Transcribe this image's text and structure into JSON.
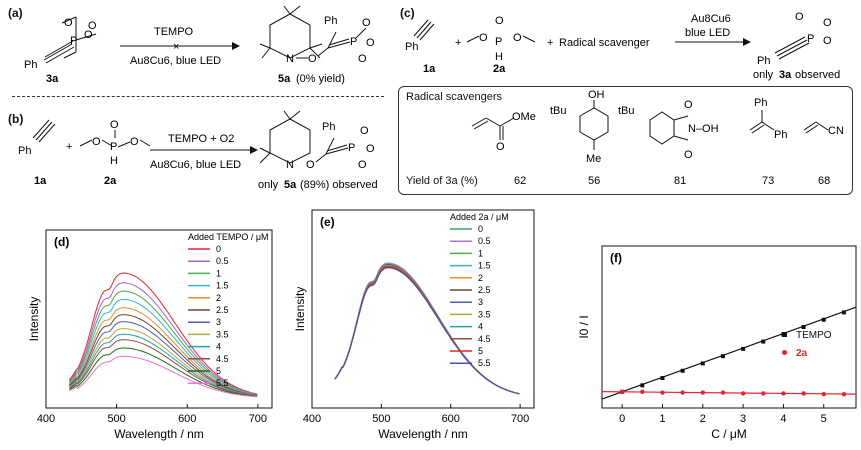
{
  "panel_a": {
    "label": "(a)",
    "reactant": "3a",
    "ph": "Ph",
    "reagent_top": "TEMPO",
    "reagent_bottom": "Au8Cu6, blue LED",
    "product": "5a",
    "product_note": "(0% yield)",
    "cross": "×"
  },
  "panel_b": {
    "label": "(b)",
    "reactant1": "1a",
    "reactant2": "2a",
    "ph": "Ph",
    "plus": "+",
    "reagent_top": "TEMPO + O2",
    "reagent_bottom": "Au8Cu6, blue LED",
    "result_prefix": "only",
    "product": "5a",
    "result_suffix": "(89%) observed"
  },
  "panel_c": {
    "label": "(c)",
    "reactant1": "1a",
    "reactant2": "2a",
    "ph": "Ph",
    "plus": "+",
    "plus2": "+",
    "scavenger_text": "Radical scavenger",
    "reagent_top": "Au8Cu6",
    "reagent_bottom": "blue LED",
    "result_prefix": "only",
    "product": "3a",
    "result_suffix": "observed",
    "box_title": "Radical scavengers",
    "yield_label": "Yield of 3a (%)",
    "scavengers": [
      {
        "struct": "methyl acrylate",
        "group": "OMe",
        "yield": "62"
      },
      {
        "struct": "BHT",
        "groups": [
          "OH",
          "tBu",
          "tBu",
          "Me"
        ],
        "yield": "56"
      },
      {
        "struct": "NHPI",
        "group": "N–OH",
        "yield": "81"
      },
      {
        "struct": "1,1-diphenylethylene",
        "groups": [
          "Ph",
          "Ph"
        ],
        "yield": "73"
      },
      {
        "struct": "acrylonitrile",
        "group": "CN",
        "yield": "68"
      }
    ]
  },
  "chart_data": [
    {
      "panel": "(d)",
      "type": "line",
      "xlabel": "Wavelength / nm",
      "ylabel": "Intensity",
      "xlim": [
        400,
        720
      ],
      "xticks": [
        "400",
        "500",
        "600",
        "700"
      ],
      "legend_title": "Added TEMPO / μM",
      "peak_wavelength": 510,
      "series": [
        {
          "name": "0",
          "peak": 0.9,
          "color": "#e8242a"
        },
        {
          "name": "0.5",
          "peak": 0.83,
          "color": "#a860d8"
        },
        {
          "name": "1",
          "peak": 0.77,
          "color": "#4cab46"
        },
        {
          "name": "1.5",
          "peak": 0.71,
          "color": "#2fb7d6"
        },
        {
          "name": "2",
          "peak": 0.65,
          "color": "#f08a24"
        },
        {
          "name": "2.5",
          "peak": 0.6,
          "color": "#6c4733"
        },
        {
          "name": "3",
          "peak": 0.55,
          "color": "#4d5fae"
        },
        {
          "name": "3.5",
          "peak": 0.5,
          "color": "#b8a638"
        },
        {
          "name": "4",
          "peak": 0.46,
          "color": "#1ea3a3"
        },
        {
          "name": "4.5",
          "peak": 0.42,
          "color": "#9a4848"
        },
        {
          "name": "5",
          "peak": 0.36,
          "color": "#1a6b1a"
        },
        {
          "name": "5.5",
          "peak": 0.3,
          "color": "#ee6fd2"
        }
      ]
    },
    {
      "panel": "(e)",
      "type": "line",
      "xlabel": "Wavelength / nm",
      "ylabel": "Intensity",
      "xlim": [
        400,
        720
      ],
      "xticks": [
        "400",
        "500",
        "600",
        "700"
      ],
      "legend_title": "Added 2a / μM",
      "peak_wavelength": 510,
      "series": [
        {
          "name": "0",
          "peak": 0.86,
          "color": "#3aa561"
        },
        {
          "name": "0.5",
          "peak": 0.86,
          "color": "#b070d8"
        },
        {
          "name": "1",
          "peak": 0.855,
          "color": "#4cab46"
        },
        {
          "name": "1.5",
          "peak": 0.855,
          "color": "#2fb7d6"
        },
        {
          "name": "2",
          "peak": 0.85,
          "color": "#f08a24"
        },
        {
          "name": "2.5",
          "peak": 0.85,
          "color": "#6c4733"
        },
        {
          "name": "3",
          "peak": 0.845,
          "color": "#4d5fae"
        },
        {
          "name": "3.5",
          "peak": 0.845,
          "color": "#b8a638"
        },
        {
          "name": "4",
          "peak": 0.84,
          "color": "#1ea3a3"
        },
        {
          "name": "4.5",
          "peak": 0.84,
          "color": "#9a4848"
        },
        {
          "name": "5",
          "peak": 0.835,
          "color": "#e8242a"
        },
        {
          "name": "5.5",
          "peak": 0.83,
          "color": "#3c55b5"
        }
      ]
    },
    {
      "panel": "(f)",
      "type": "scatter",
      "xlabel": "C / μM",
      "ylabel": "I0 / I",
      "xlim": [
        -0.5,
        5.8
      ],
      "ylim": [
        0.8,
        2.8
      ],
      "xticks": [
        "0",
        "1",
        "2",
        "3",
        "4",
        "5"
      ],
      "series": [
        {
          "name": "TEMPO",
          "color": "#111111",
          "marker": "square",
          "x": [
            0,
            0.5,
            1,
            1.5,
            2,
            2.5,
            3,
            3.5,
            4,
            4.5,
            5,
            5.5
          ],
          "y": [
            1.0,
            1.08,
            1.17,
            1.26,
            1.35,
            1.44,
            1.53,
            1.62,
            1.71,
            1.8,
            1.89,
            1.98
          ],
          "fit": [
            1.0,
            0.18
          ]
        },
        {
          "name": "2a",
          "color": "#e8242a",
          "marker": "circle",
          "x": [
            0,
            0.5,
            1,
            1.5,
            2,
            2.5,
            3,
            3.5,
            4,
            4.5,
            5,
            5.5
          ],
          "y": [
            1.0,
            1.0,
            0.99,
            0.99,
            0.99,
            0.99,
            0.98,
            0.98,
            0.98,
            0.98,
            0.97,
            0.97
          ],
          "fit": [
            1.0,
            -0.005
          ]
        }
      ]
    }
  ]
}
